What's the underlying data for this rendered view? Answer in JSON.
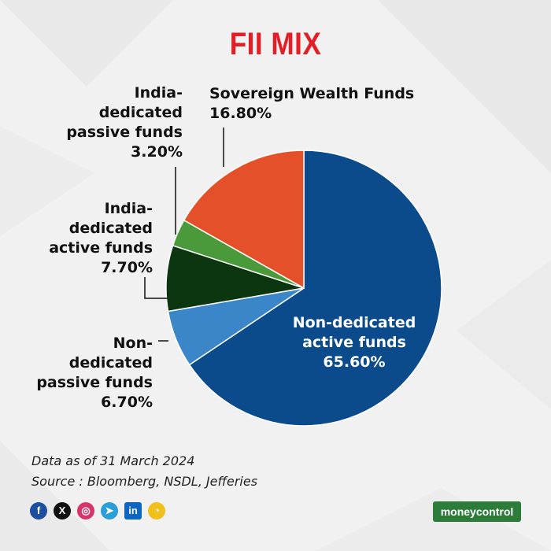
{
  "title": "FII MIX",
  "chart_data": {
    "type": "pie",
    "title": "FII MIX",
    "slices": [
      {
        "name": "Non-dedicated active funds",
        "lines": [
          "Non-dedicated",
          "active funds"
        ],
        "value": 65.6,
        "label": "65.60%",
        "color": "#0b4a8b"
      },
      {
        "name": "Non-dedicated passive funds",
        "lines": [
          "Non-",
          "dedicated",
          "passive funds"
        ],
        "value": 6.7,
        "label": "6.70%",
        "color": "#3a86c8"
      },
      {
        "name": "India-dedicated active funds",
        "lines": [
          "India-",
          "dedicated",
          "active funds"
        ],
        "value": 7.7,
        "label": "7.70%",
        "color": "#0b3610"
      },
      {
        "name": "India-dedicated passive funds",
        "lines": [
          "India-",
          "dedicated",
          "passive funds"
        ],
        "value": 3.2,
        "label": "3.20%",
        "color": "#4a9a3c"
      },
      {
        "name": "Sovereign Wealth Funds",
        "lines": [
          "Sovereign Wealth Funds"
        ],
        "value": 16.8,
        "label": "16.80%",
        "color": "#e4502a"
      }
    ],
    "start": "12 o'clock",
    "direction": "clockwise"
  },
  "footnotes": {
    "date": "Data as of 31 March 2024",
    "source": "Source : Bloomberg, NSDL, Jefferies"
  },
  "social": [
    {
      "icon": "facebook-icon",
      "glyph": "f",
      "color": "#1d4ea0"
    },
    {
      "icon": "x-icon",
      "glyph": "X",
      "color": "#111111"
    },
    {
      "icon": "instagram-icon",
      "glyph": "◎",
      "color": "#d8336b"
    },
    {
      "icon": "telegram-icon",
      "glyph": "➤",
      "color": "#2a9ed8"
    },
    {
      "icon": "linkedin-icon",
      "glyph": "in",
      "color": "#0a66c2"
    },
    {
      "icon": "koo-icon",
      "glyph": "◔",
      "color": "#f2c01d"
    }
  ],
  "brand": {
    "part1": "money",
    "part2": "control"
  }
}
